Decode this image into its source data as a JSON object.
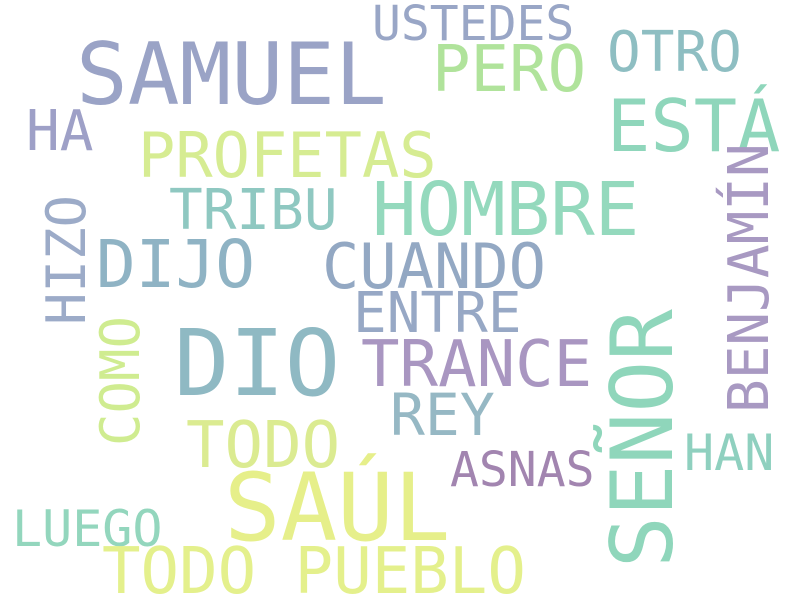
{
  "words": [
    {
      "id": "ustedes",
      "text": "USTEDES",
      "color": "#99a6c6",
      "orientation": "horizontal"
    },
    {
      "id": "samuel",
      "text": "SAMUEL",
      "color": "#9aa3c6",
      "orientation": "horizontal"
    },
    {
      "id": "pero",
      "text": "PERO",
      "color": "#b0e39b",
      "orientation": "horizontal"
    },
    {
      "id": "otro",
      "text": "OTRO",
      "color": "#8ebec2",
      "orientation": "horizontal"
    },
    {
      "id": "esta",
      "text": "ESTÁ",
      "color": "#8fd6bb",
      "orientation": "horizontal"
    },
    {
      "id": "ha",
      "text": "HA",
      "color": "#9ea0c7",
      "orientation": "horizontal"
    },
    {
      "id": "profetas",
      "text": "PROFETAS",
      "color": "#d6ec92",
      "orientation": "horizontal"
    },
    {
      "id": "tribu",
      "text": "TRIBU",
      "color": "#8fc8c1",
      "orientation": "horizontal"
    },
    {
      "id": "hombre",
      "text": "HOMBRE",
      "color": "#94d9bd",
      "orientation": "horizontal"
    },
    {
      "id": "hizo",
      "text": "HIZO",
      "color": "#9cabc8",
      "orientation": "vertical"
    },
    {
      "id": "dijo",
      "text": "DIJO",
      "color": "#8fb3c4",
      "orientation": "horizontal"
    },
    {
      "id": "cuando",
      "text": "CUANDO",
      "color": "#93a8c3",
      "orientation": "horizontal"
    },
    {
      "id": "benjamin",
      "text": "BENJAMÍN",
      "color": "#a899c2",
      "orientation": "vertical"
    },
    {
      "id": "entre",
      "text": "ENTRE",
      "color": "#97a8c5",
      "orientation": "horizontal"
    },
    {
      "id": "senor",
      "text": "SEÑOR",
      "color": "#8fd6bb",
      "orientation": "vertical"
    },
    {
      "id": "como",
      "text": "COMO",
      "color": "#cfec90",
      "orientation": "vertical"
    },
    {
      "id": "dio",
      "text": "DIO",
      "color": "#8fb9c3",
      "orientation": "horizontal"
    },
    {
      "id": "trance",
      "text": "TRANCE",
      "color": "#a996c1",
      "orientation": "horizontal"
    },
    {
      "id": "rey",
      "text": "REY",
      "color": "#96b8c4",
      "orientation": "horizontal"
    },
    {
      "id": "todo",
      "text": "TODO",
      "color": "#dbeb91",
      "orientation": "horizontal"
    },
    {
      "id": "han",
      "text": "HAN",
      "color": "#8fd0bf",
      "orientation": "horizontal"
    },
    {
      "id": "asnas",
      "text": "ASNAS",
      "color": "#a285b0",
      "orientation": "horizontal"
    },
    {
      "id": "saul",
      "text": "SAÚL",
      "color": "#e6ef8a",
      "orientation": "horizontal"
    },
    {
      "id": "luego",
      "text": "LUEGO",
      "color": "#93d6bd",
      "orientation": "horizontal"
    },
    {
      "id": "todo-pueblo",
      "text": "TODO PUEBLO",
      "color": "#e4f08c",
      "orientation": "horizontal"
    }
  ]
}
